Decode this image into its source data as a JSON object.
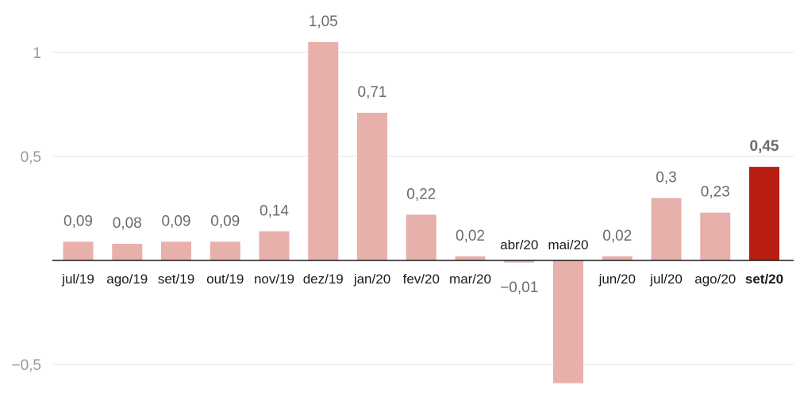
{
  "chart_data": {
    "type": "bar",
    "categories": [
      "jul/19",
      "ago/19",
      "set/19",
      "out/19",
      "nov/19",
      "dez/19",
      "jan/20",
      "fev/20",
      "mar/20",
      "abr/20",
      "mai/20",
      "jun/20",
      "jul/20",
      "ago/20",
      "set/20"
    ],
    "values": [
      0.09,
      0.08,
      0.09,
      0.09,
      0.14,
      1.05,
      0.71,
      0.22,
      0.02,
      -0.01,
      -0.59,
      0.02,
      0.3,
      0.23,
      0.45
    ],
    "value_labels": [
      "0,09",
      "0,08",
      "0,09",
      "0,09",
      "0,14",
      "1,05",
      "0,71",
      "0,22",
      "0,02",
      "−0,01",
      "",
      "0,02",
      "0,3",
      "0,23",
      "0,45"
    ],
    "highlight_index": 14,
    "y_ticks": [
      1,
      0.5,
      -0.5
    ],
    "y_tick_labels": [
      "1",
      "0,5",
      "−0,5"
    ],
    "ylim": [
      -0.6,
      1.2
    ],
    "grid": true,
    "colors": {
      "bar": "#e8b0ab",
      "highlight": "#b81d12",
      "highlight_text": "#333333"
    }
  }
}
